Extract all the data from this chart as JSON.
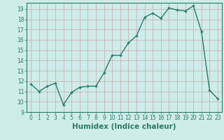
{
  "title": "",
  "xlabel": "Humidex (Indice chaleur)",
  "ylabel": "",
  "x": [
    0,
    1,
    2,
    3,
    4,
    5,
    6,
    7,
    8,
    9,
    10,
    11,
    12,
    13,
    14,
    15,
    16,
    17,
    18,
    19,
    20,
    21,
    22,
    23
  ],
  "y": [
    11.7,
    11.0,
    11.5,
    11.8,
    9.7,
    10.9,
    11.4,
    11.5,
    11.5,
    12.8,
    14.5,
    14.5,
    15.7,
    16.4,
    18.2,
    18.6,
    18.1,
    19.1,
    18.9,
    18.8,
    19.3,
    16.8,
    11.1,
    10.3
  ],
  "line_color": "#2a7a68",
  "marker": "+",
  "marker_size": 3.5,
  "bg_color": "#ceecea",
  "grid_color": "#c8a8a8",
  "ylim": [
    9,
    19.6
  ],
  "xlim": [
    -0.5,
    23.5
  ],
  "yticks": [
    9,
    10,
    11,
    12,
    13,
    14,
    15,
    16,
    17,
    18,
    19
  ],
  "xticks": [
    0,
    1,
    2,
    3,
    4,
    5,
    6,
    7,
    8,
    9,
    10,
    11,
    12,
    13,
    14,
    15,
    16,
    17,
    18,
    19,
    20,
    21,
    22,
    23
  ],
  "tick_fontsize": 5.5,
  "xlabel_fontsize": 7.5,
  "line_width": 1.0
}
